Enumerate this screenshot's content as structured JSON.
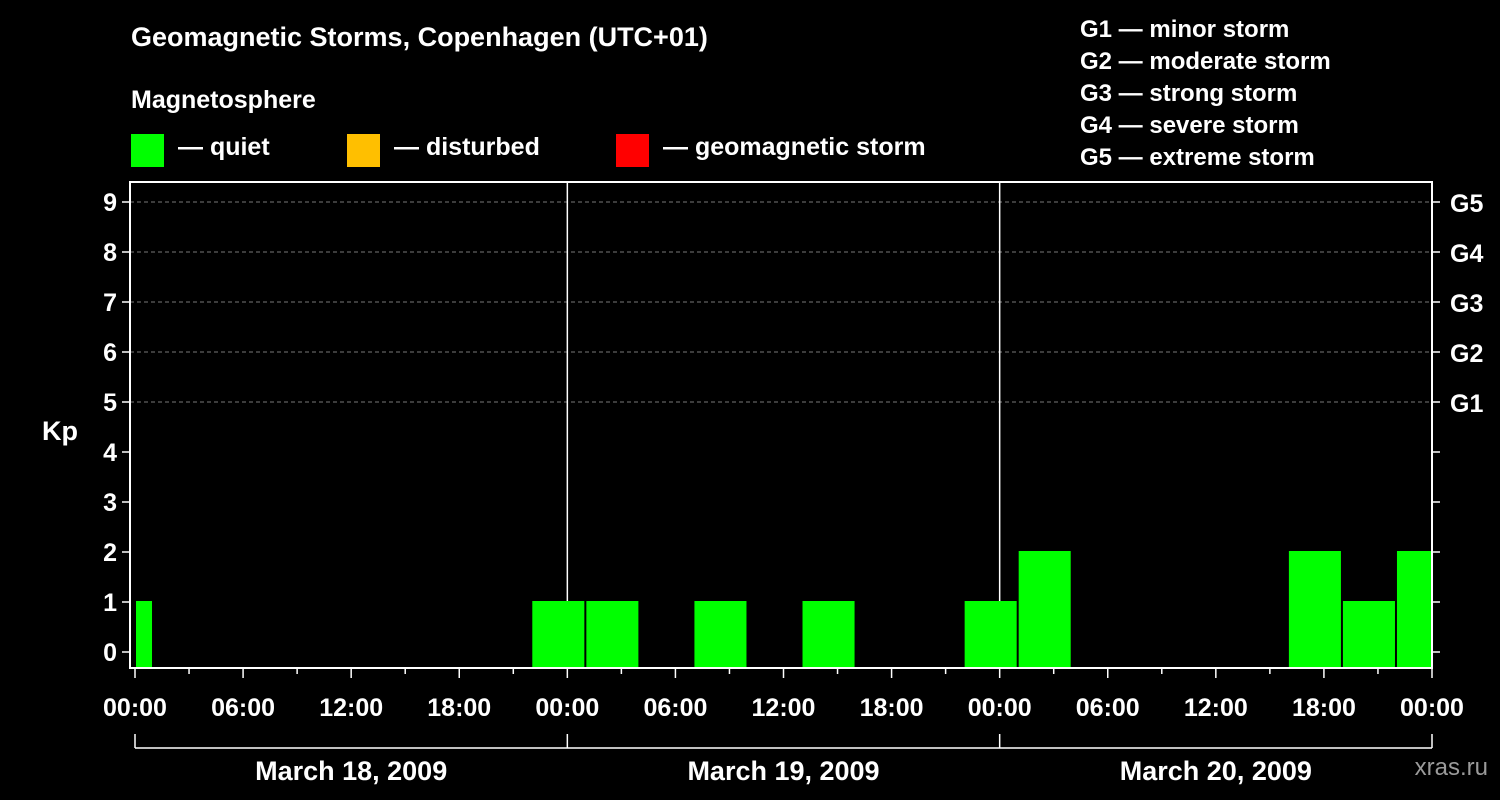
{
  "title": "Geomagnetic Storms, Copenhagen (UTC+01)",
  "legend": {
    "heading": "Magnetosphere",
    "items": [
      {
        "label": "— quiet",
        "color": "#00ff00"
      },
      {
        "label": "— disturbed",
        "color": "#ffbf00"
      },
      {
        "label": "— geomagnetic storm",
        "color": "#ff0000"
      }
    ]
  },
  "g_scale": [
    "G1 — minor storm",
    "G2 — moderate storm",
    "G3 — strong storm",
    "G4 — severe storm",
    "G5 — extreme storm"
  ],
  "watermark": "xras.ru",
  "chart_data": {
    "type": "bar",
    "title": "Geomagnetic Storms, Copenhagen (UTC+01)",
    "ylabel": "Kp",
    "ylim": [
      0,
      9
    ],
    "yticks": [
      "0",
      "1",
      "2",
      "3",
      "4",
      "5",
      "6",
      "7",
      "8",
      "9"
    ],
    "right_axis": [
      {
        "kp": 5,
        "label": "G1"
      },
      {
        "kp": 6,
        "label": "G2"
      },
      {
        "kp": 7,
        "label": "G3"
      },
      {
        "kp": 8,
        "label": "G4"
      },
      {
        "kp": 9,
        "label": "G5"
      }
    ],
    "x_range_hours": [
      0,
      72
    ],
    "xtick_labels": [
      "00:00",
      "06:00",
      "12:00",
      "18:00",
      "00:00",
      "06:00",
      "12:00",
      "18:00",
      "00:00",
      "06:00",
      "12:00",
      "18:00",
      "00:00"
    ],
    "days": [
      "March 18, 2009",
      "March 19, 2009",
      "March 20, 2009"
    ],
    "grid": "dashed at Kp 5-9",
    "bars": [
      {
        "start": 0,
        "end": 1,
        "kp": 1
      },
      {
        "start": 22,
        "end": 25,
        "kp": 1
      },
      {
        "start": 25,
        "end": 28,
        "kp": 1
      },
      {
        "start": 31,
        "end": 34,
        "kp": 1
      },
      {
        "start": 37,
        "end": 40,
        "kp": 1
      },
      {
        "start": 46,
        "end": 49,
        "kp": 1
      },
      {
        "start": 49,
        "end": 52,
        "kp": 2
      },
      {
        "start": 64,
        "end": 67,
        "kp": 2
      },
      {
        "start": 67,
        "end": 70,
        "kp": 1
      },
      {
        "start": 70,
        "end": 72,
        "kp": 2
      }
    ],
    "bar_color": "#00ff00"
  }
}
